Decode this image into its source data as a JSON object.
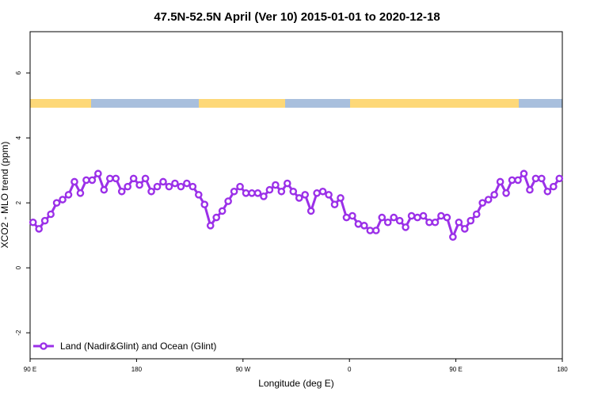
{
  "chart_data": {
    "type": "line",
    "title": "47.5N-52.5N April (Ver 10)   2015-01-01 to 2020-12-18",
    "xlabel": "Longitude (deg E)",
    "ylabel": "XCO2 - MLO trend (ppm)",
    "x": [
      92.5,
      97.5,
      102.5,
      107.5,
      112.5,
      117.5,
      122.5,
      127.5,
      132.5,
      137.5,
      142.5,
      147.5,
      152.5,
      157.5,
      162.5,
      167.5,
      172.5,
      177.5,
      182.5,
      187.5,
      192.5,
      197.5,
      202.5,
      207.5,
      212.5,
      217.5,
      222.5,
      227.5,
      232.5,
      237.5,
      242.5,
      247.5,
      252.5,
      257.5,
      262.5,
      267.5,
      272.5,
      277.5,
      282.5,
      287.5,
      292.5,
      297.5,
      302.5,
      307.5,
      312.5,
      317.5,
      322.5,
      327.5,
      332.5,
      337.5,
      342.5,
      347.5,
      352.5,
      357.5,
      362.5,
      367.5,
      372.5,
      377.5,
      382.5,
      387.5,
      392.5,
      397.5,
      402.5,
      407.5,
      412.5,
      417.5,
      422.5,
      427.5,
      432.5,
      437.5,
      442.5,
      447.5,
      452.5,
      457.5,
      462.5,
      467.5,
      472.5,
      477.5,
      482.5,
      487.5,
      492.5,
      497.5,
      502.5,
      507.5,
      512.5,
      517.5,
      522.5,
      527.5,
      532.5,
      537.5
    ],
    "series": [
      {
        "name": "Land (Nadir&Glint) and Ocean (Glint)",
        "color": "#9b30e8",
        "values": [
          1.4,
          1.2,
          1.45,
          1.65,
          2.0,
          2.1,
          2.25,
          2.65,
          2.3,
          2.7,
          2.7,
          2.9,
          2.4,
          2.75,
          2.75,
          2.35,
          2.5,
          2.75,
          2.55,
          2.75,
          2.35,
          2.5,
          2.65,
          2.5,
          2.6,
          2.5,
          2.6,
          2.5,
          2.25,
          1.95,
          1.3,
          1.55,
          1.75,
          2.05,
          2.35,
          2.5,
          2.3,
          2.3,
          2.3,
          2.2,
          2.4,
          2.55,
          2.35,
          2.6,
          2.35,
          2.15,
          2.25,
          1.75,
          2.3,
          2.35,
          2.25,
          1.95,
          2.15,
          1.55,
          1.6,
          1.35,
          1.3,
          1.15,
          1.15,
          1.55,
          1.4,
          1.55,
          1.45,
          1.25,
          1.6,
          1.55,
          1.6,
          1.4,
          1.4,
          1.6,
          1.55,
          0.95,
          1.4,
          1.2,
          1.45,
          1.65,
          2.0,
          2.1,
          2.25,
          2.65,
          2.3,
          2.7,
          2.7,
          2.9,
          2.4,
          2.75,
          2.75,
          2.35,
          2.5,
          2.75
        ]
      }
    ],
    "xlim": [
      90,
      540
    ],
    "xticks": [
      {
        "value": 90,
        "label": "90 E"
      },
      180,
      {
        "value": 270,
        "label": "90 W"
      },
      {
        "value": 360,
        "label": "0"
      },
      {
        "value": 450,
        "label": "90 E"
      },
      {
        "value": 540,
        "label": "180"
      }
    ],
    "ylim": [
      -2.8,
      7.27
    ],
    "yticks": [
      -2,
      0,
      2,
      4,
      6
    ],
    "legend": "bottom-left"
  }
}
